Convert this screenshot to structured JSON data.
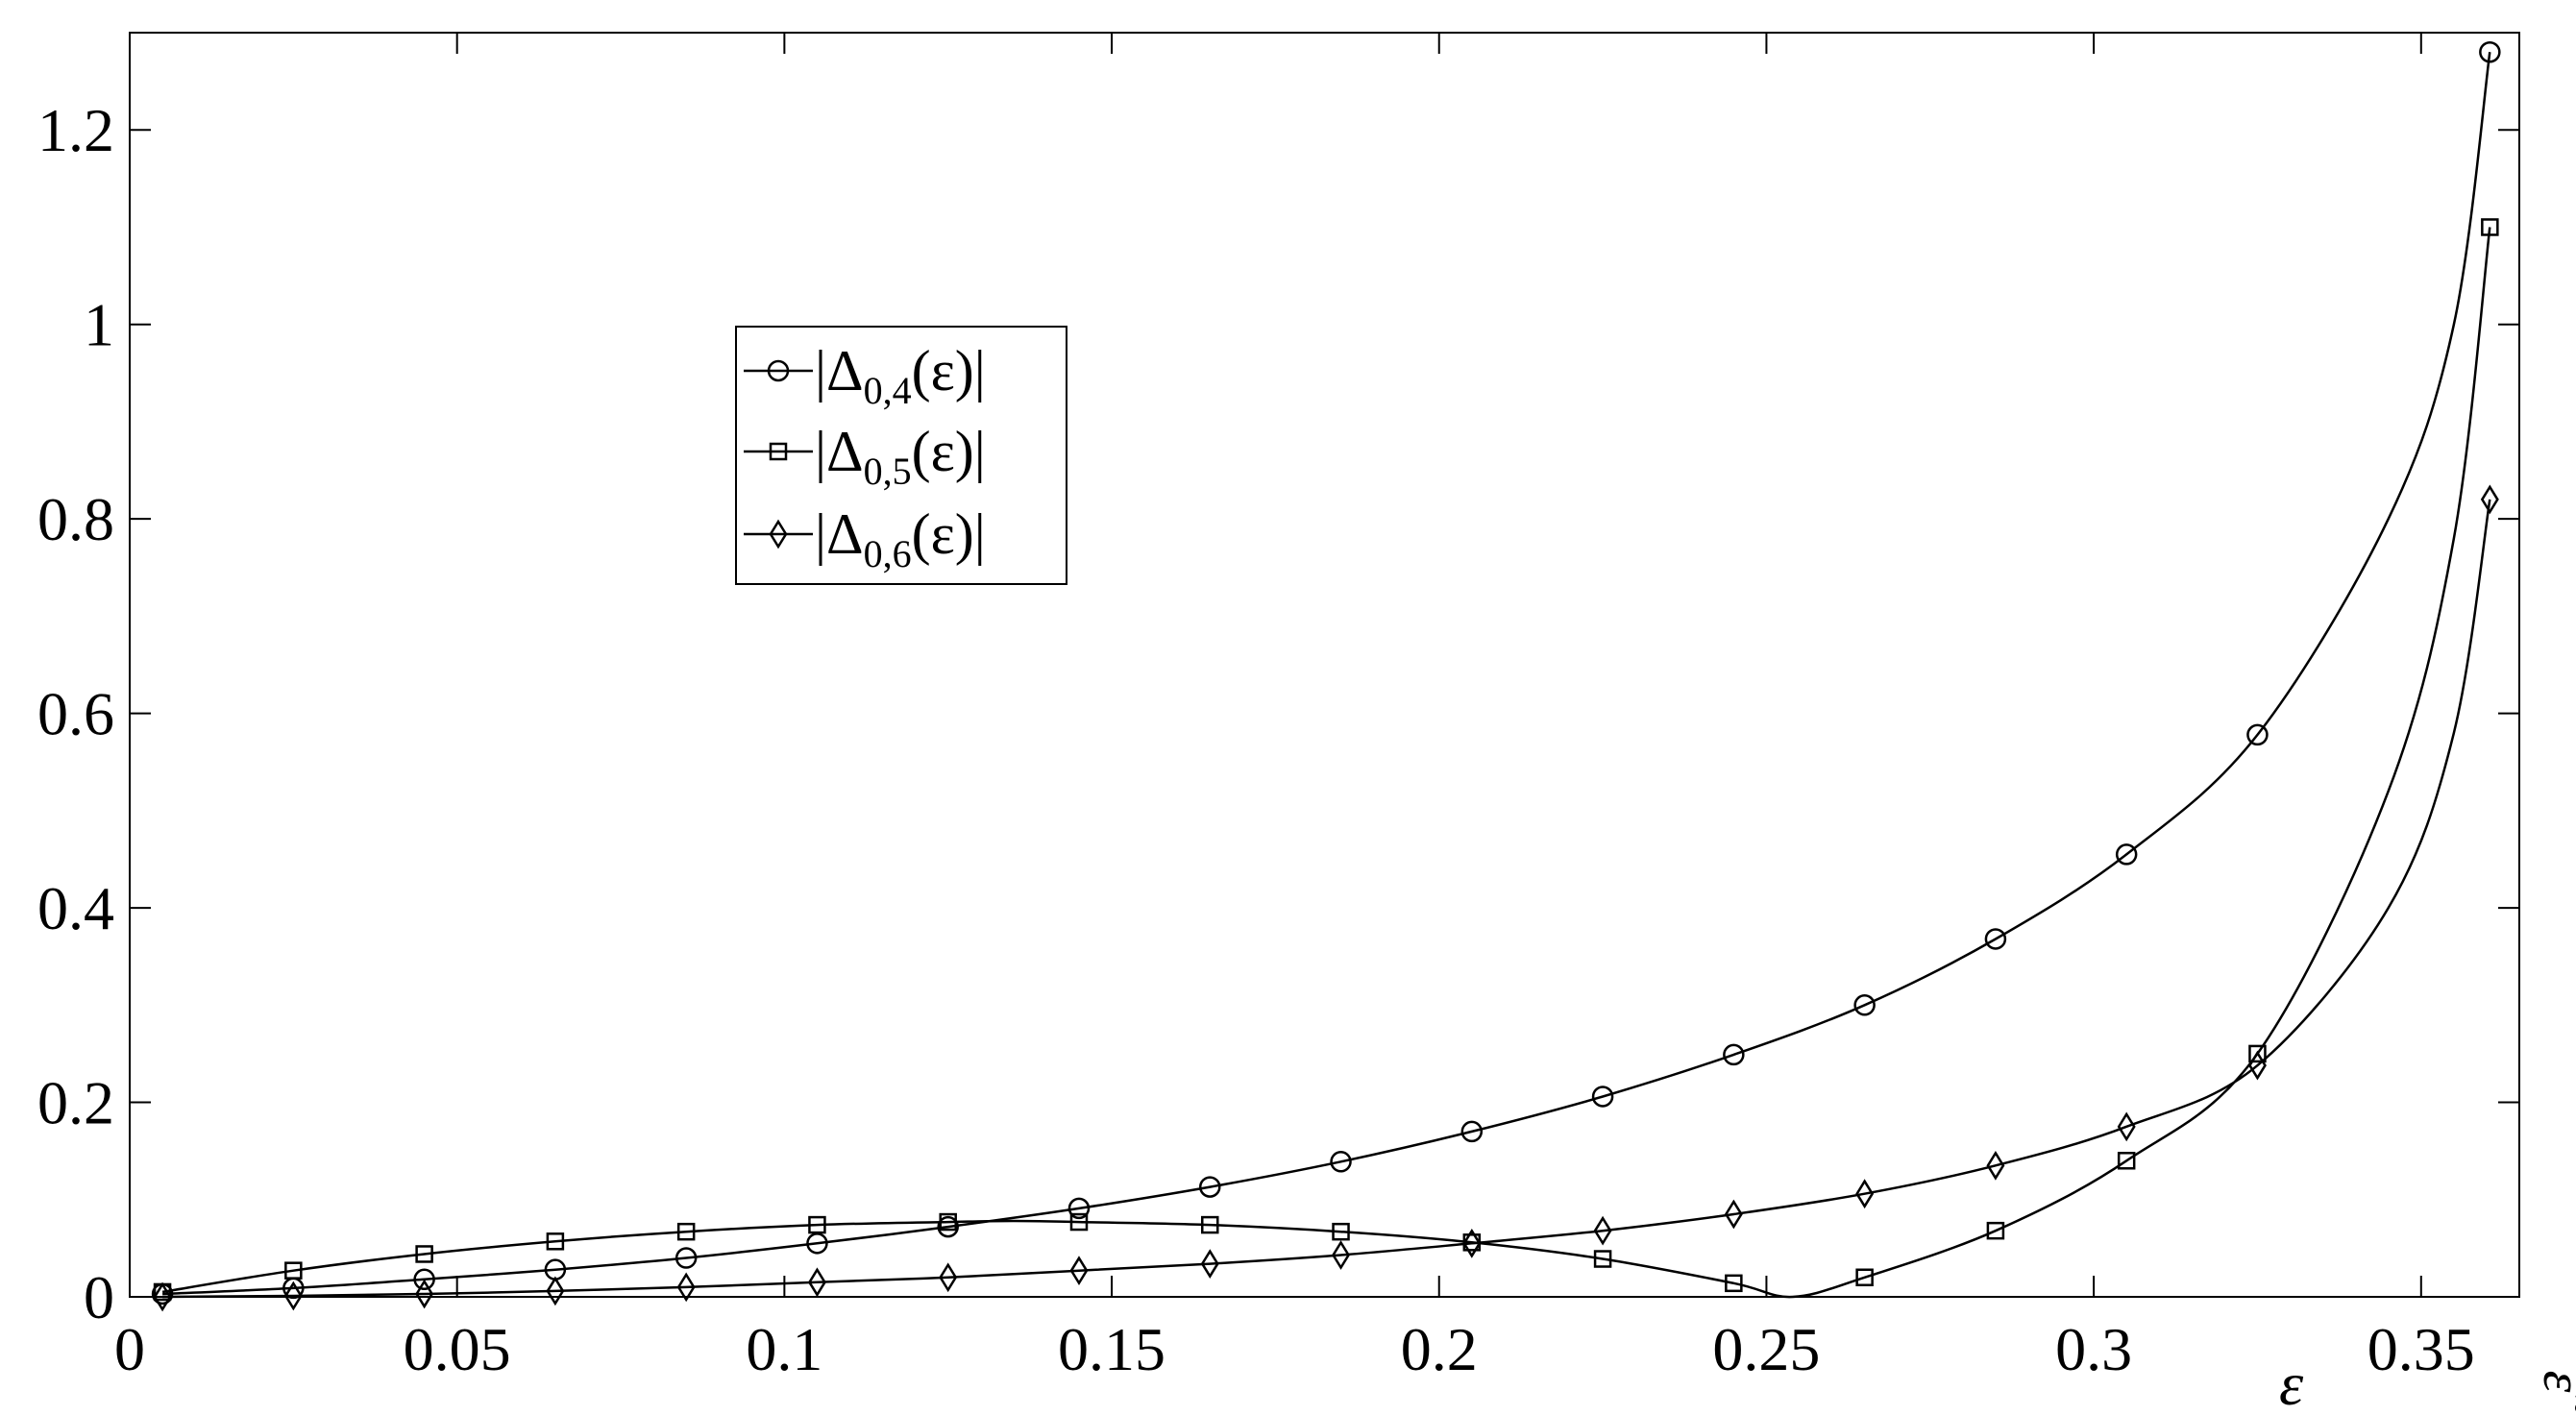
{
  "chart_data": {
    "type": "line",
    "title": "",
    "xlabel": "ε",
    "xlabel_end": "ε̃",
    "ylabel": "",
    "xlim": [
      0,
      0.365
    ],
    "ylim": [
      0,
      1.3
    ],
    "x_ticks": [
      0,
      0.05,
      0.1,
      0.15,
      0.2,
      0.25,
      0.3,
      0.35
    ],
    "x_tick_labels": [
      "0",
      "0.05",
      "0.1",
      "0.15",
      "0.2",
      "0.25",
      "0.3",
      "0.35"
    ],
    "y_ticks": [
      0,
      0.2,
      0.4,
      0.6,
      0.8,
      1.0,
      1.2
    ],
    "y_tick_labels": [
      "0",
      "0.2",
      "0.4",
      "0.6",
      "0.8",
      "1",
      "1.2"
    ],
    "grid": false,
    "legend_position": "upper-left-center",
    "marker_x": [
      0.005,
      0.025,
      0.045,
      0.065,
      0.085,
      0.105,
      0.125,
      0.145,
      0.165,
      0.185,
      0.205,
      0.225,
      0.245,
      0.265,
      0.285,
      0.305,
      0.325,
      0.3605
    ],
    "series": [
      {
        "name": "|Δ0,4(ε)|",
        "legend_main": "|Δ",
        "legend_sub": "0,4",
        "legend_tail": "(ε)|",
        "marker": "circle",
        "x": [
          0.005,
          0.025,
          0.045,
          0.065,
          0.085,
          0.105,
          0.125,
          0.145,
          0.165,
          0.185,
          0.205,
          0.225,
          0.245,
          0.265,
          0.285,
          0.305,
          0.325,
          0.345,
          0.355,
          0.3605
        ],
        "values": [
          0.003,
          0.009,
          0.018,
          0.028,
          0.04,
          0.055,
          0.072,
          0.091,
          0.113,
          0.139,
          0.17,
          0.206,
          0.249,
          0.3,
          0.368,
          0.455,
          0.578,
          0.8,
          1.0,
          1.28
        ],
        "marker_values": [
          0.003,
          0.009,
          0.018,
          0.028,
          0.04,
          0.055,
          0.072,
          0.091,
          0.113,
          0.139,
          0.17,
          0.206,
          0.249,
          0.3,
          0.368,
          0.455,
          0.578,
          1.28
        ]
      },
      {
        "name": "|Δ0,5(ε)|",
        "legend_main": "|Δ",
        "legend_sub": "0,5",
        "legend_tail": "(ε)|",
        "marker": "square",
        "x": [
          0.005,
          0.025,
          0.045,
          0.065,
          0.085,
          0.105,
          0.125,
          0.135,
          0.145,
          0.165,
          0.185,
          0.205,
          0.225,
          0.245,
          0.254,
          0.265,
          0.285,
          0.305,
          0.325,
          0.345,
          0.355,
          0.3605
        ],
        "values": [
          0.005,
          0.027,
          0.044,
          0.057,
          0.067,
          0.074,
          0.077,
          0.078,
          0.077,
          0.074,
          0.067,
          0.056,
          0.039,
          0.014,
          0.0,
          0.02,
          0.068,
          0.14,
          0.25,
          0.52,
          0.78,
          1.1
        ],
        "marker_values": [
          0.005,
          0.027,
          0.044,
          0.057,
          0.067,
          0.074,
          0.077,
          0.077,
          0.074,
          0.067,
          0.056,
          0.039,
          0.014,
          0.02,
          0.068,
          0.14,
          0.25,
          1.1
        ]
      },
      {
        "name": "|Δ0,6(ε)|",
        "legend_main": "|Δ",
        "legend_sub": "0,6",
        "legend_tail": "(ε)|",
        "marker": "diamond",
        "x": [
          0.005,
          0.025,
          0.045,
          0.065,
          0.085,
          0.105,
          0.125,
          0.145,
          0.165,
          0.185,
          0.205,
          0.225,
          0.245,
          0.265,
          0.285,
          0.305,
          0.325,
          0.345,
          0.355,
          0.3605
        ],
        "values": [
          0.0,
          0.001,
          0.003,
          0.006,
          0.01,
          0.015,
          0.02,
          0.027,
          0.034,
          0.043,
          0.055,
          0.068,
          0.085,
          0.106,
          0.135,
          0.175,
          0.238,
          0.4,
          0.58,
          0.82
        ],
        "marker_values": [
          0.0,
          0.001,
          0.003,
          0.006,
          0.01,
          0.015,
          0.02,
          0.027,
          0.034,
          0.043,
          0.055,
          0.068,
          0.085,
          0.106,
          0.135,
          0.175,
          0.238,
          0.82
        ]
      }
    ]
  }
}
